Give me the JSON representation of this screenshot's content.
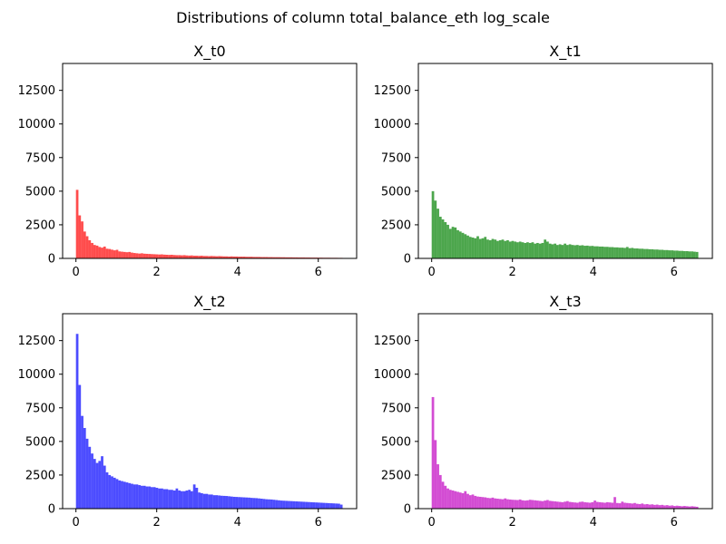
{
  "figure": {
    "suptitle": "Distributions of column total_balance_eth log_scale"
  },
  "chart_data": [
    {
      "type": "bar",
      "title": "X_t0",
      "color": "#ff0000",
      "bin_width": 0.0617,
      "x_start": 0.0,
      "xlim": [
        -0.33,
        6.95
      ],
      "ylim": [
        0,
        14500
      ],
      "xticks": [
        0,
        2,
        4,
        6
      ],
      "yticks": [
        0,
        2500,
        5000,
        7500,
        10000,
        12500
      ],
      "values": [
        5100,
        3200,
        2750,
        2000,
        1650,
        1350,
        1150,
        1000,
        950,
        850,
        800,
        880,
        720,
        700,
        650,
        600,
        640,
        520,
        500,
        480,
        460,
        480,
        430,
        400,
        380,
        360,
        380,
        350,
        340,
        330,
        320,
        310,
        300,
        290,
        300,
        280,
        270,
        260,
        270,
        250,
        240,
        240,
        230,
        240,
        220,
        210,
        220,
        200,
        200,
        190,
        200,
        180,
        180,
        170,
        180,
        170,
        160,
        170,
        160,
        150,
        150,
        140,
        150,
        140,
        140,
        130,
        130,
        130,
        120,
        120,
        120,
        110,
        110,
        110,
        100,
        100,
        100,
        95,
        95,
        90,
        90,
        90,
        85,
        85,
        80,
        80,
        80,
        75,
        75,
        70,
        70,
        70,
        65,
        65,
        60,
        60,
        60,
        55,
        55,
        50,
        50,
        50,
        45,
        45,
        45,
        40,
        40
      ]
    },
    {
      "type": "bar",
      "title": "X_t1",
      "color": "#008000",
      "bin_width": 0.0617,
      "x_start": 0.0,
      "xlim": [
        -0.33,
        6.95
      ],
      "ylim": [
        0,
        14500
      ],
      "xticks": [
        0,
        2,
        4,
        6
      ],
      "yticks": [
        0,
        2500,
        5000,
        7500,
        10000,
        12500
      ],
      "values": [
        5000,
        4300,
        3700,
        3100,
        2900,
        2700,
        2500,
        2200,
        2350,
        2300,
        2100,
        2000,
        1900,
        1800,
        1700,
        1600,
        1550,
        1500,
        1650,
        1450,
        1500,
        1600,
        1400,
        1350,
        1450,
        1400,
        1300,
        1350,
        1400,
        1300,
        1350,
        1250,
        1300,
        1250,
        1200,
        1250,
        1200,
        1150,
        1200,
        1150,
        1200,
        1100,
        1150,
        1100,
        1150,
        1400,
        1250,
        1100,
        1050,
        1100,
        1000,
        1050,
        1000,
        1100,
        1000,
        1050,
        1000,
        980,
        1000,
        960,
        980,
        940,
        950,
        920,
        930,
        900,
        900,
        880,
        880,
        860,
        860,
        840,
        840,
        820,
        820,
        800,
        800,
        780,
        850,
        760,
        780,
        740,
        740,
        720,
        720,
        700,
        700,
        680,
        680,
        660,
        660,
        640,
        640,
        620,
        620,
        600,
        600,
        580,
        580,
        560,
        560,
        540,
        540,
        520,
        520,
        500,
        480
      ]
    },
    {
      "type": "bar",
      "title": "X_t2",
      "color": "#0000ff",
      "bin_width": 0.0617,
      "x_start": 0.0,
      "xlim": [
        -0.33,
        6.95
      ],
      "ylim": [
        0,
        14500
      ],
      "xticks": [
        0,
        2,
        4,
        6
      ],
      "yticks": [
        0,
        2500,
        5000,
        7500,
        10000,
        12500
      ],
      "values": [
        13000,
        9200,
        6900,
        6000,
        5200,
        4600,
        4100,
        3700,
        3400,
        3550,
        3900,
        3200,
        2700,
        2500,
        2400,
        2300,
        2200,
        2100,
        2050,
        2000,
        1950,
        1900,
        1850,
        1800,
        1800,
        1750,
        1700,
        1700,
        1650,
        1650,
        1600,
        1600,
        1550,
        1500,
        1500,
        1450,
        1450,
        1400,
        1400,
        1350,
        1500,
        1350,
        1300,
        1300,
        1350,
        1400,
        1300,
        1800,
        1550,
        1200,
        1150,
        1100,
        1100,
        1050,
        1050,
        1000,
        1000,
        980,
        960,
        950,
        940,
        920,
        900,
        880,
        870,
        860,
        850,
        840,
        830,
        820,
        800,
        790,
        780,
        760,
        740,
        720,
        700,
        690,
        680,
        660,
        640,
        620,
        600,
        590,
        580,
        570,
        560,
        550,
        540,
        530,
        520,
        510,
        500,
        490,
        480,
        470,
        460,
        450,
        440,
        430,
        420,
        410,
        400,
        390,
        380,
        370,
        300
      ]
    },
    {
      "type": "bar",
      "title": "X_t3",
      "color": "#c000c0",
      "bin_width": 0.0617,
      "x_start": 0.0,
      "xlim": [
        -0.33,
        6.95
      ],
      "ylim": [
        0,
        14500
      ],
      "xticks": [
        0,
        2,
        4,
        6
      ],
      "yticks": [
        0,
        2500,
        5000,
        7500,
        10000,
        12500
      ],
      "values": [
        8300,
        5100,
        3300,
        2500,
        2000,
        1700,
        1500,
        1400,
        1350,
        1300,
        1250,
        1200,
        1150,
        1300,
        1100,
        1000,
        1050,
        950,
        900,
        880,
        860,
        840,
        800,
        780,
        820,
        760,
        740,
        720,
        700,
        760,
        700,
        680,
        660,
        650,
        640,
        680,
        620,
        600,
        620,
        660,
        640,
        620,
        600,
        580,
        560,
        600,
        640,
        580,
        560,
        540,
        520,
        500,
        480,
        520,
        560,
        500,
        480,
        460,
        440,
        500,
        520,
        480,
        460,
        440,
        480,
        600,
        500,
        480,
        460,
        440,
        480,
        460,
        440,
        860,
        420,
        400,
        520,
        440,
        420,
        400,
        380,
        420,
        360,
        340,
        380,
        320,
        340,
        300,
        320,
        280,
        300,
        260,
        280,
        240,
        260,
        220,
        240,
        200,
        220,
        200,
        180,
        200,
        180,
        160,
        180,
        160,
        140
      ]
    }
  ]
}
